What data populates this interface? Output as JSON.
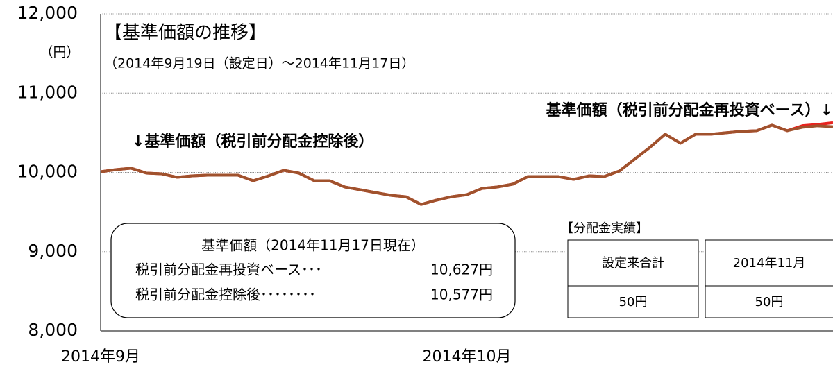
{
  "chart_data": {
    "type": "line",
    "title": "【基準価額の推移】",
    "subtitle": "（2014年9月19日（設定日）～2014年11月17日）",
    "y_label": "（円）",
    "categories": [
      "2014年9月",
      null,
      null,
      null,
      null,
      null,
      null,
      null,
      null,
      null,
      null,
      null,
      null,
      null,
      null,
      null,
      null,
      null,
      null,
      null,
      null,
      null,
      null,
      null,
      "2014年10月",
      null,
      null,
      null,
      null,
      null,
      null,
      null,
      null,
      null,
      null,
      null,
      null,
      null,
      null,
      null,
      null,
      null,
      null,
      null,
      null,
      null,
      null,
      null,
      null
    ],
    "series": [
      {
        "name": "基準価額（税引前分配金再投資ベース）↓",
        "color": "#e8231e",
        "values": [
          10009,
          10035,
          10053,
          9991,
          9982,
          9939,
          9956,
          9965,
          9965,
          9965,
          9895,
          9956,
          10026,
          9991,
          9895,
          9895,
          9816,
          9781,
          9746,
          9711,
          9693,
          9596,
          9649,
          9693,
          9719,
          9798,
          9816,
          9851,
          9947,
          9947,
          9947,
          9912,
          9956,
          9947,
          10018,
          10167,
          10316,
          10482,
          10368,
          10482,
          10482,
          10500,
          10518,
          10526,
          10596,
          10526,
          10590,
          10605,
          10627
        ]
      },
      {
        "name": "↓基準価額（税引前分配金控除後）",
        "color": "#a0522d",
        "values": [
          10009,
          10035,
          10053,
          9991,
          9982,
          9939,
          9956,
          9965,
          9965,
          9965,
          9895,
          9956,
          10026,
          9991,
          9895,
          9895,
          9816,
          9781,
          9746,
          9711,
          9693,
          9596,
          9649,
          9693,
          9719,
          9798,
          9816,
          9851,
          9947,
          9947,
          9947,
          9912,
          9956,
          9947,
          10018,
          10167,
          10316,
          10482,
          10368,
          10482,
          10482,
          10500,
          10518,
          10526,
          10596,
          10526,
          10570,
          10588,
          10577
        ]
      }
    ],
    "ylim": [
      8000,
      12000
    ],
    "yticks": [
      {
        "value": 8000,
        "label": "8,000"
      },
      {
        "value": 9000,
        "label": "9,000"
      },
      {
        "value": 10000,
        "label": "10,000"
      },
      {
        "value": 11000,
        "label": "11,000"
      },
      {
        "value": 12000,
        "label": "12,000"
      }
    ],
    "grid": true,
    "nav_box": {
      "heading": "基準価額（2014年11月17日現在）",
      "rows": [
        [
          "税引前分配金再投資ベース･･･",
          "10,627円"
        ],
        [
          "税引前分配金控除後････････",
          "10,577円"
        ]
      ]
    },
    "distribution": {
      "heading": "【分配金実績】",
      "headers": [
        "設定来合計",
        "2014年11月"
      ],
      "values": [
        "50円",
        "50円"
      ]
    }
  }
}
